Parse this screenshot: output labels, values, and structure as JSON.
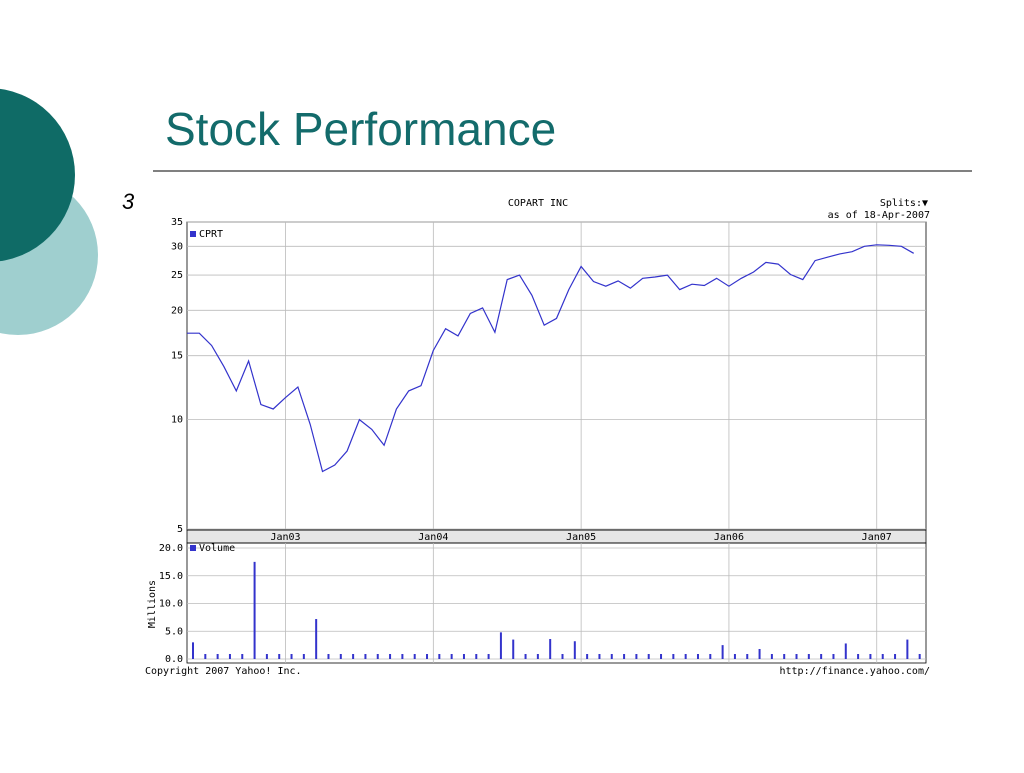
{
  "slide": {
    "title": "Stock Performance",
    "number": "3"
  },
  "footer": {
    "copyright": "Copyright 2007 Yahoo! Inc.",
    "url": "http://finance.yahoo.com/"
  },
  "chart_data": [
    {
      "type": "line",
      "title": "COPART INC",
      "subtitle": "as of 18-Apr-2007",
      "annotation": "Splits:▼",
      "log_scale": true,
      "grid": true,
      "x": [
        "2002-05",
        "2002-06",
        "2002-07",
        "2002-08",
        "2002-09",
        "2002-10",
        "2002-11",
        "2002-12",
        "2003-01",
        "2003-02",
        "2003-03",
        "2003-04",
        "2003-05",
        "2003-06",
        "2003-07",
        "2003-08",
        "2003-09",
        "2003-10",
        "2003-11",
        "2003-12",
        "2004-01",
        "2004-02",
        "2004-03",
        "2004-04",
        "2004-05",
        "2004-06",
        "2004-07",
        "2004-08",
        "2004-09",
        "2004-10",
        "2004-11",
        "2004-12",
        "2005-01",
        "2005-02",
        "2005-03",
        "2005-04",
        "2005-05",
        "2005-06",
        "2005-07",
        "2005-08",
        "2005-09",
        "2005-10",
        "2005-11",
        "2005-12",
        "2006-01",
        "2006-02",
        "2006-03",
        "2006-04",
        "2006-05",
        "2006-06",
        "2006-07",
        "2006-08",
        "2006-09",
        "2006-10",
        "2006-11",
        "2006-12",
        "2007-01",
        "2007-02",
        "2007-03",
        "2007-04"
      ],
      "series": [
        {
          "name": "CPRT",
          "color": "#3333cc",
          "values": [
            17.3,
            17.3,
            16,
            14,
            12,
            14.5,
            11,
            10.7,
            11.5,
            12.3,
            9.7,
            7.2,
            7.5,
            8.2,
            10,
            9.4,
            8.5,
            10.7,
            12,
            12.4,
            15.5,
            17.8,
            17,
            19.6,
            20.3,
            17.4,
            24.3,
            25,
            22,
            18.2,
            19,
            22.8,
            26.4,
            24,
            23.3,
            24.1,
            23,
            24.5,
            24.7,
            25,
            22.8,
            23.6,
            23.4,
            24.5,
            23.3,
            24.5,
            25.5,
            27.1,
            26.8,
            25.1,
            24.3,
            27.4,
            28,
            28.6,
            29,
            30,
            30.3,
            30.2,
            30,
            28.7
          ]
        }
      ],
      "xlim": [
        "2002-05",
        "2007-05"
      ],
      "xticks": [
        {
          "value": "2003-01",
          "label": "Jan03"
        },
        {
          "value": "2004-01",
          "label": "Jan04"
        },
        {
          "value": "2005-01",
          "label": "Jan05"
        },
        {
          "value": "2006-01",
          "label": "Jan06"
        },
        {
          "value": "2007-01",
          "label": "Jan07"
        }
      ],
      "ylim": [
        5,
        35
      ],
      "yticks": [
        5,
        10,
        15,
        20,
        25,
        30,
        35
      ]
    },
    {
      "type": "bar",
      "y_label": "Millions",
      "grid": true,
      "x": [
        "2002-05",
        "2002-06",
        "2002-07",
        "2002-08",
        "2002-09",
        "2002-10",
        "2002-11",
        "2002-12",
        "2003-01",
        "2003-02",
        "2003-03",
        "2003-04",
        "2003-05",
        "2003-06",
        "2003-07",
        "2003-08",
        "2003-09",
        "2003-10",
        "2003-11",
        "2003-12",
        "2004-01",
        "2004-02",
        "2004-03",
        "2004-04",
        "2004-05",
        "2004-06",
        "2004-07",
        "2004-08",
        "2004-09",
        "2004-10",
        "2004-11",
        "2004-12",
        "2005-01",
        "2005-02",
        "2005-03",
        "2005-04",
        "2005-05",
        "2005-06",
        "2005-07",
        "2005-08",
        "2005-09",
        "2005-10",
        "2005-11",
        "2005-12",
        "2006-01",
        "2006-02",
        "2006-03",
        "2006-04",
        "2006-05",
        "2006-06",
        "2006-07",
        "2006-08",
        "2006-09",
        "2006-10",
        "2006-11",
        "2006-12",
        "2007-01",
        "2007-02",
        "2007-03",
        "2007-04"
      ],
      "series": [
        {
          "name": "Volume",
          "color": "#3333cc",
          "values": [
            3,
            0.9,
            0.9,
            0.9,
            0.9,
            17.5,
            0.9,
            0.9,
            0.9,
            0.9,
            7.2,
            0.9,
            0.9,
            0.9,
            0.9,
            0.9,
            0.9,
            0.9,
            0.9,
            0.9,
            0.9,
            0.9,
            0.9,
            0.9,
            0.9,
            4.8,
            3.5,
            0.9,
            0.9,
            3.6,
            0.9,
            3.2,
            0.9,
            0.9,
            0.9,
            0.9,
            0.9,
            0.9,
            0.9,
            0.9,
            0.9,
            0.9,
            0.9,
            2.5,
            0.9,
            0.9,
            1.8,
            0.9,
            0.9,
            0.9,
            0.9,
            0.9,
            0.9,
            2.8,
            0.9,
            0.9,
            0.9,
            0.9,
            3.5,
            0.9
          ]
        }
      ],
      "xlim": [
        "2002-05",
        "2007-05"
      ],
      "ylim": [
        0,
        20
      ],
      "yticks": [
        {
          "value": 0,
          "label": "0.0"
        },
        {
          "value": 5,
          "label": "5.0"
        },
        {
          "value": 10,
          "label": "10.0"
        },
        {
          "value": 15,
          "label": "15.0"
        },
        {
          "value": 20,
          "label": "20.0"
        }
      ]
    }
  ]
}
